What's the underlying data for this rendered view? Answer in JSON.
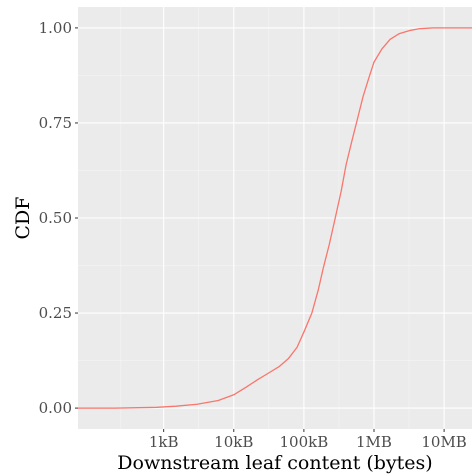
{
  "chart_data": {
    "type": "line",
    "title": "",
    "xlabel": "Downstream leaf content (bytes)",
    "ylabel": "CDF",
    "x_scale": "log",
    "xlim": [
      60,
      25000000
    ],
    "ylim": [
      -0.055,
      1.055
    ],
    "x_ticks": [
      {
        "value": 1000,
        "label": "1kB"
      },
      {
        "value": 10000,
        "label": "10kB"
      },
      {
        "value": 100000,
        "label": "100kB"
      },
      {
        "value": 1000000,
        "label": "1MB"
      },
      {
        "value": 10000000,
        "label": "10MB"
      }
    ],
    "y_ticks": [
      {
        "value": 0,
        "label": "0.00"
      },
      {
        "value": 0.25,
        "label": "0.25"
      },
      {
        "value": 0.5,
        "label": "0.50"
      },
      {
        "value": 0.75,
        "label": "0.75"
      },
      {
        "value": 1,
        "label": "1.00"
      }
    ],
    "grid": true,
    "legend": "none",
    "series": [
      {
        "color": "#F8766D",
        "points": [
          [
            60,
            0.0
          ],
          [
            200,
            0.0
          ],
          [
            800,
            0.002
          ],
          [
            1500,
            0.005
          ],
          [
            3000,
            0.01
          ],
          [
            6000,
            0.02
          ],
          [
            10000,
            0.035
          ],
          [
            15000,
            0.055
          ],
          [
            22000,
            0.075
          ],
          [
            30000,
            0.09
          ],
          [
            45000,
            0.11
          ],
          [
            60000,
            0.13
          ],
          [
            80000,
            0.16
          ],
          [
            100000,
            0.2
          ],
          [
            130000,
            0.25
          ],
          [
            160000,
            0.31
          ],
          [
            190000,
            0.37
          ],
          [
            230000,
            0.43
          ],
          [
            280000,
            0.5
          ],
          [
            340000,
            0.57
          ],
          [
            400000,
            0.64
          ],
          [
            480000,
            0.7
          ],
          [
            580000,
            0.76
          ],
          [
            700000,
            0.82
          ],
          [
            850000,
            0.87
          ],
          [
            1000000,
            0.91
          ],
          [
            1300000,
            0.945
          ],
          [
            1700000,
            0.97
          ],
          [
            2300000,
            0.985
          ],
          [
            3200000,
            0.993
          ],
          [
            4500000,
            0.998
          ],
          [
            7000000,
            1.0
          ],
          [
            25000000,
            1.0
          ]
        ]
      }
    ]
  }
}
